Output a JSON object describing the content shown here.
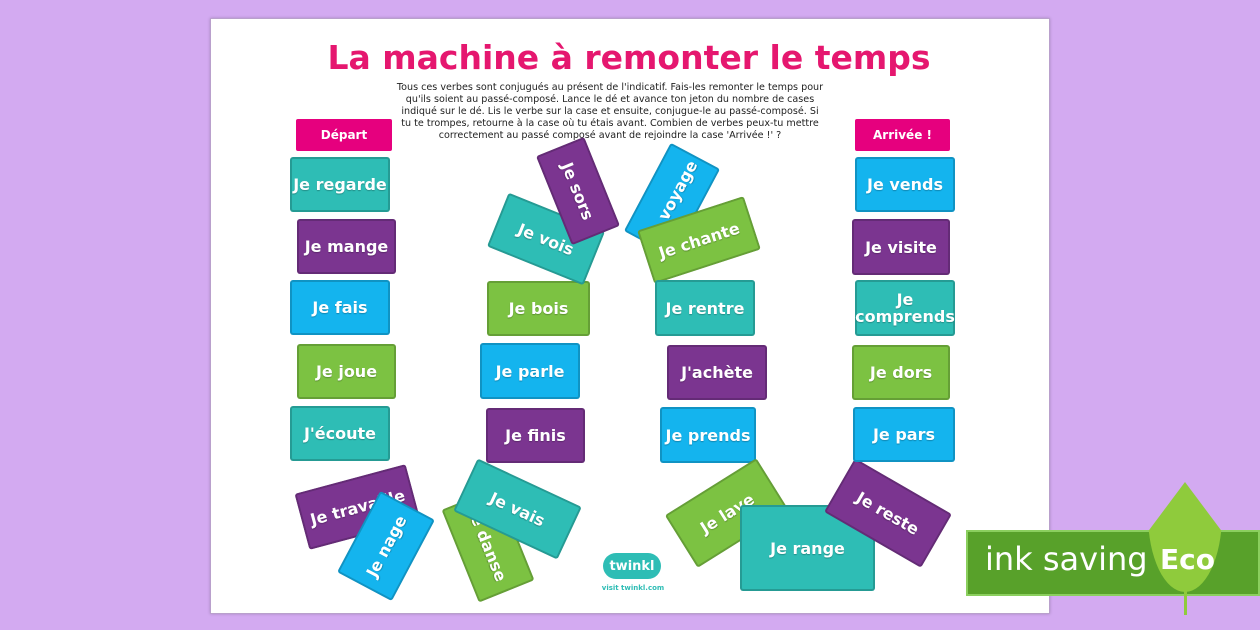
{
  "title": "La machine à remonter le temps",
  "instructions": "Tous ces verbes sont conjugués au présent de l'indicatif. Fais-les remonter le temps pour qu'ils soient au passé-composé. Lance le dé et avance ton jeton du nombre de cases indiqué sur le dé. Lis le verbe sur la case et ensuite, conjugue-le au passé-composé. Si tu te trompes, retourne à la case où tu étais avant. Combien de verbes peux-tu mettre correctement au passé composé avant de rejoindre la case 'Arrivée !' ?",
  "start_label": "Départ",
  "finish_label": "Arrivée !",
  "colors": {
    "teal": "#2ebdb5",
    "purple": "#7b3590",
    "blue": "#14b4ee",
    "green": "#7cc242",
    "pink": "#e6007e",
    "title": "#e5176f"
  },
  "tiles": [
    {
      "text": "Je regarde",
      "color": "teal"
    },
    {
      "text": "Je mange",
      "color": "purple"
    },
    {
      "text": "Je fais",
      "color": "blue"
    },
    {
      "text": "Je joue",
      "color": "green"
    },
    {
      "text": "J'écoute",
      "color": "teal"
    },
    {
      "text": "Je travaille",
      "color": "purple"
    },
    {
      "text": "Je nage",
      "color": "blue"
    },
    {
      "text": "Je danse",
      "color": "green"
    },
    {
      "text": "Je vais",
      "color": "teal"
    },
    {
      "text": "Je finis",
      "color": "purple"
    },
    {
      "text": "Je parle",
      "color": "blue"
    },
    {
      "text": "Je bois",
      "color": "green"
    },
    {
      "text": "Je vois",
      "color": "teal"
    },
    {
      "text": "Je sors",
      "color": "purple"
    },
    {
      "text": "Je voyage",
      "color": "blue"
    },
    {
      "text": "Je chante",
      "color": "green"
    },
    {
      "text": "Je rentre",
      "color": "teal"
    },
    {
      "text": "J'achète",
      "color": "purple"
    },
    {
      "text": "Je prends",
      "color": "blue"
    },
    {
      "text": "Je lave",
      "color": "green"
    },
    {
      "text": "Je range",
      "color": "teal"
    },
    {
      "text": "Je reste",
      "color": "purple"
    },
    {
      "text": "Je pars",
      "color": "blue"
    },
    {
      "text": "Je dors",
      "color": "green"
    },
    {
      "text": "Je comprends",
      "color": "teal"
    },
    {
      "text": "Je visite",
      "color": "purple"
    },
    {
      "text": "Je vends",
      "color": "blue"
    }
  ],
  "logo": {
    "brand": "twinkl",
    "url_text": "visit twinkl.com"
  },
  "badge": {
    "text": "ink saving",
    "leaf": "Eco"
  }
}
